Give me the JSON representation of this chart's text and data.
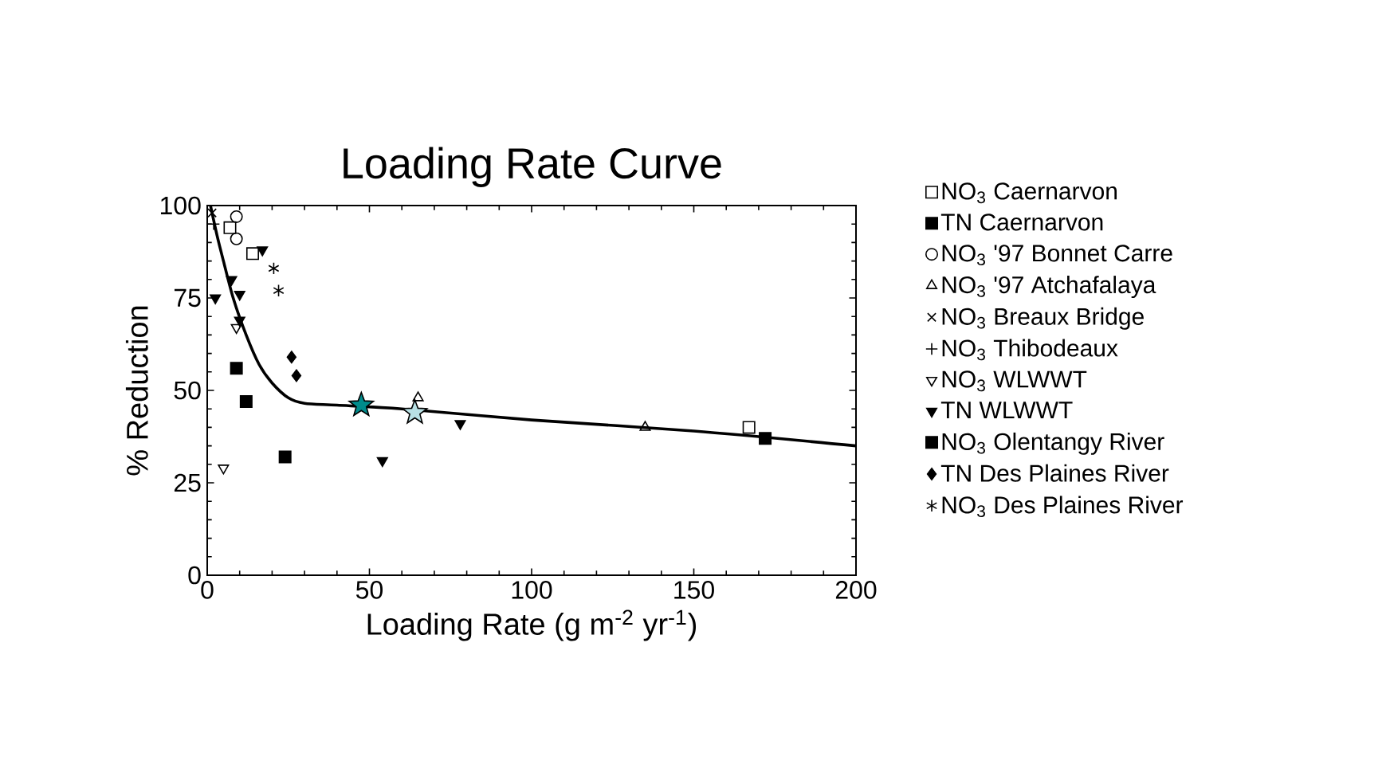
{
  "chart_data": {
    "type": "scatter",
    "title": "Loading Rate Curve",
    "xlabel": "Loading Rate (g m$^{-2}$ yr$^{-1}$)",
    "ylabel": "% Reduction",
    "xlim": [
      0,
      200
    ],
    "ylim": [
      0,
      100
    ],
    "xticks": [
      0,
      50,
      100,
      150,
      200
    ],
    "yticks": [
      0,
      25,
      50,
      75,
      100
    ],
    "grid": false,
    "legend": "right",
    "series": [
      {
        "name": "NO$_{3}$ Caernarvon",
        "color": "#000000",
        "marker": "square",
        "x": [
          7,
          14,
          167
        ],
        "values": [
          94,
          87,
          40
        ]
      },
      {
        "name": "TN Caernarvon",
        "color": "#000000",
        "marker": "square",
        "x": [
          9,
          12,
          24
        ],
        "values": [
          56,
          47,
          32
        ]
      },
      {
        "name": "NO$_{3}$ '97 Bonnet Carre",
        "color": "#000000",
        "marker": "circle",
        "x": [
          9,
          9
        ],
        "values": [
          97,
          91
        ]
      },
      {
        "name": "NO$_{3}$ '97 Atchafalaya",
        "color": "#000000",
        "marker": "triangle",
        "x": [
          65,
          135
        ],
        "values": [
          48,
          40
        ]
      },
      {
        "name": "NO$_{3}$ Breaux Bridge",
        "color": "#000000",
        "marker": "cross",
        "x": [
          1.5
        ],
        "values": [
          98
        ]
      },
      {
        "name": "NO$_{3}$ Thibodeaux",
        "color": "#000000",
        "marker": "plus",
        "x": [
          2
        ],
        "values": [
          95
        ]
      },
      {
        "name": "NO$_{3}$ WLWWT",
        "color": "#000000",
        "marker": "triangle-down",
        "x": [
          5,
          9
        ],
        "values": [
          29,
          67
        ]
      },
      {
        "name": "TN WLWWT",
        "color": "#000000",
        "marker": "triangle-down",
        "x": [
          2.5,
          7.5,
          10,
          10,
          17,
          54,
          78
        ],
        "values": [
          75,
          80,
          76,
          69,
          88,
          31,
          41
        ]
      },
      {
        "name": "NO$_{3}$ Olentangy River",
        "color": "#000000",
        "marker": "square",
        "x": [
          172
        ],
        "values": [
          37
        ]
      },
      {
        "name": "TN Des Plaines River",
        "color": "#000000",
        "marker": "diamond",
        "x": [
          26,
          27.5
        ],
        "values": [
          59,
          54
        ]
      },
      {
        "name": "NO$_{3}$ Des Plaines River",
        "color": "#000000",
        "x": [
          20.5,
          22
        ],
        "values": [
          83,
          77
        ]
      },
      {
        "color": "#008b8b",
        "marker": "star",
        "x": [
          47.5
        ],
        "values": [
          46
        ]
      },
      {
        "color": "#b8e0e4",
        "marker": "star",
        "x": [
          64
        ],
        "values": [
          44
        ]
      },
      {
        "type": "line",
        "color": "#000000",
        "marker": "none",
        "line_style": "solid",
        "x": [
          1,
          3,
          5,
          8,
          12,
          16,
          20,
          25,
          30,
          40,
          60,
          100,
          150,
          200
        ],
        "values": [
          100,
          92,
          85,
          75,
          65,
          57,
          52,
          48,
          46.5,
          46,
          45,
          42,
          39,
          35
        ]
      }
    ]
  }
}
